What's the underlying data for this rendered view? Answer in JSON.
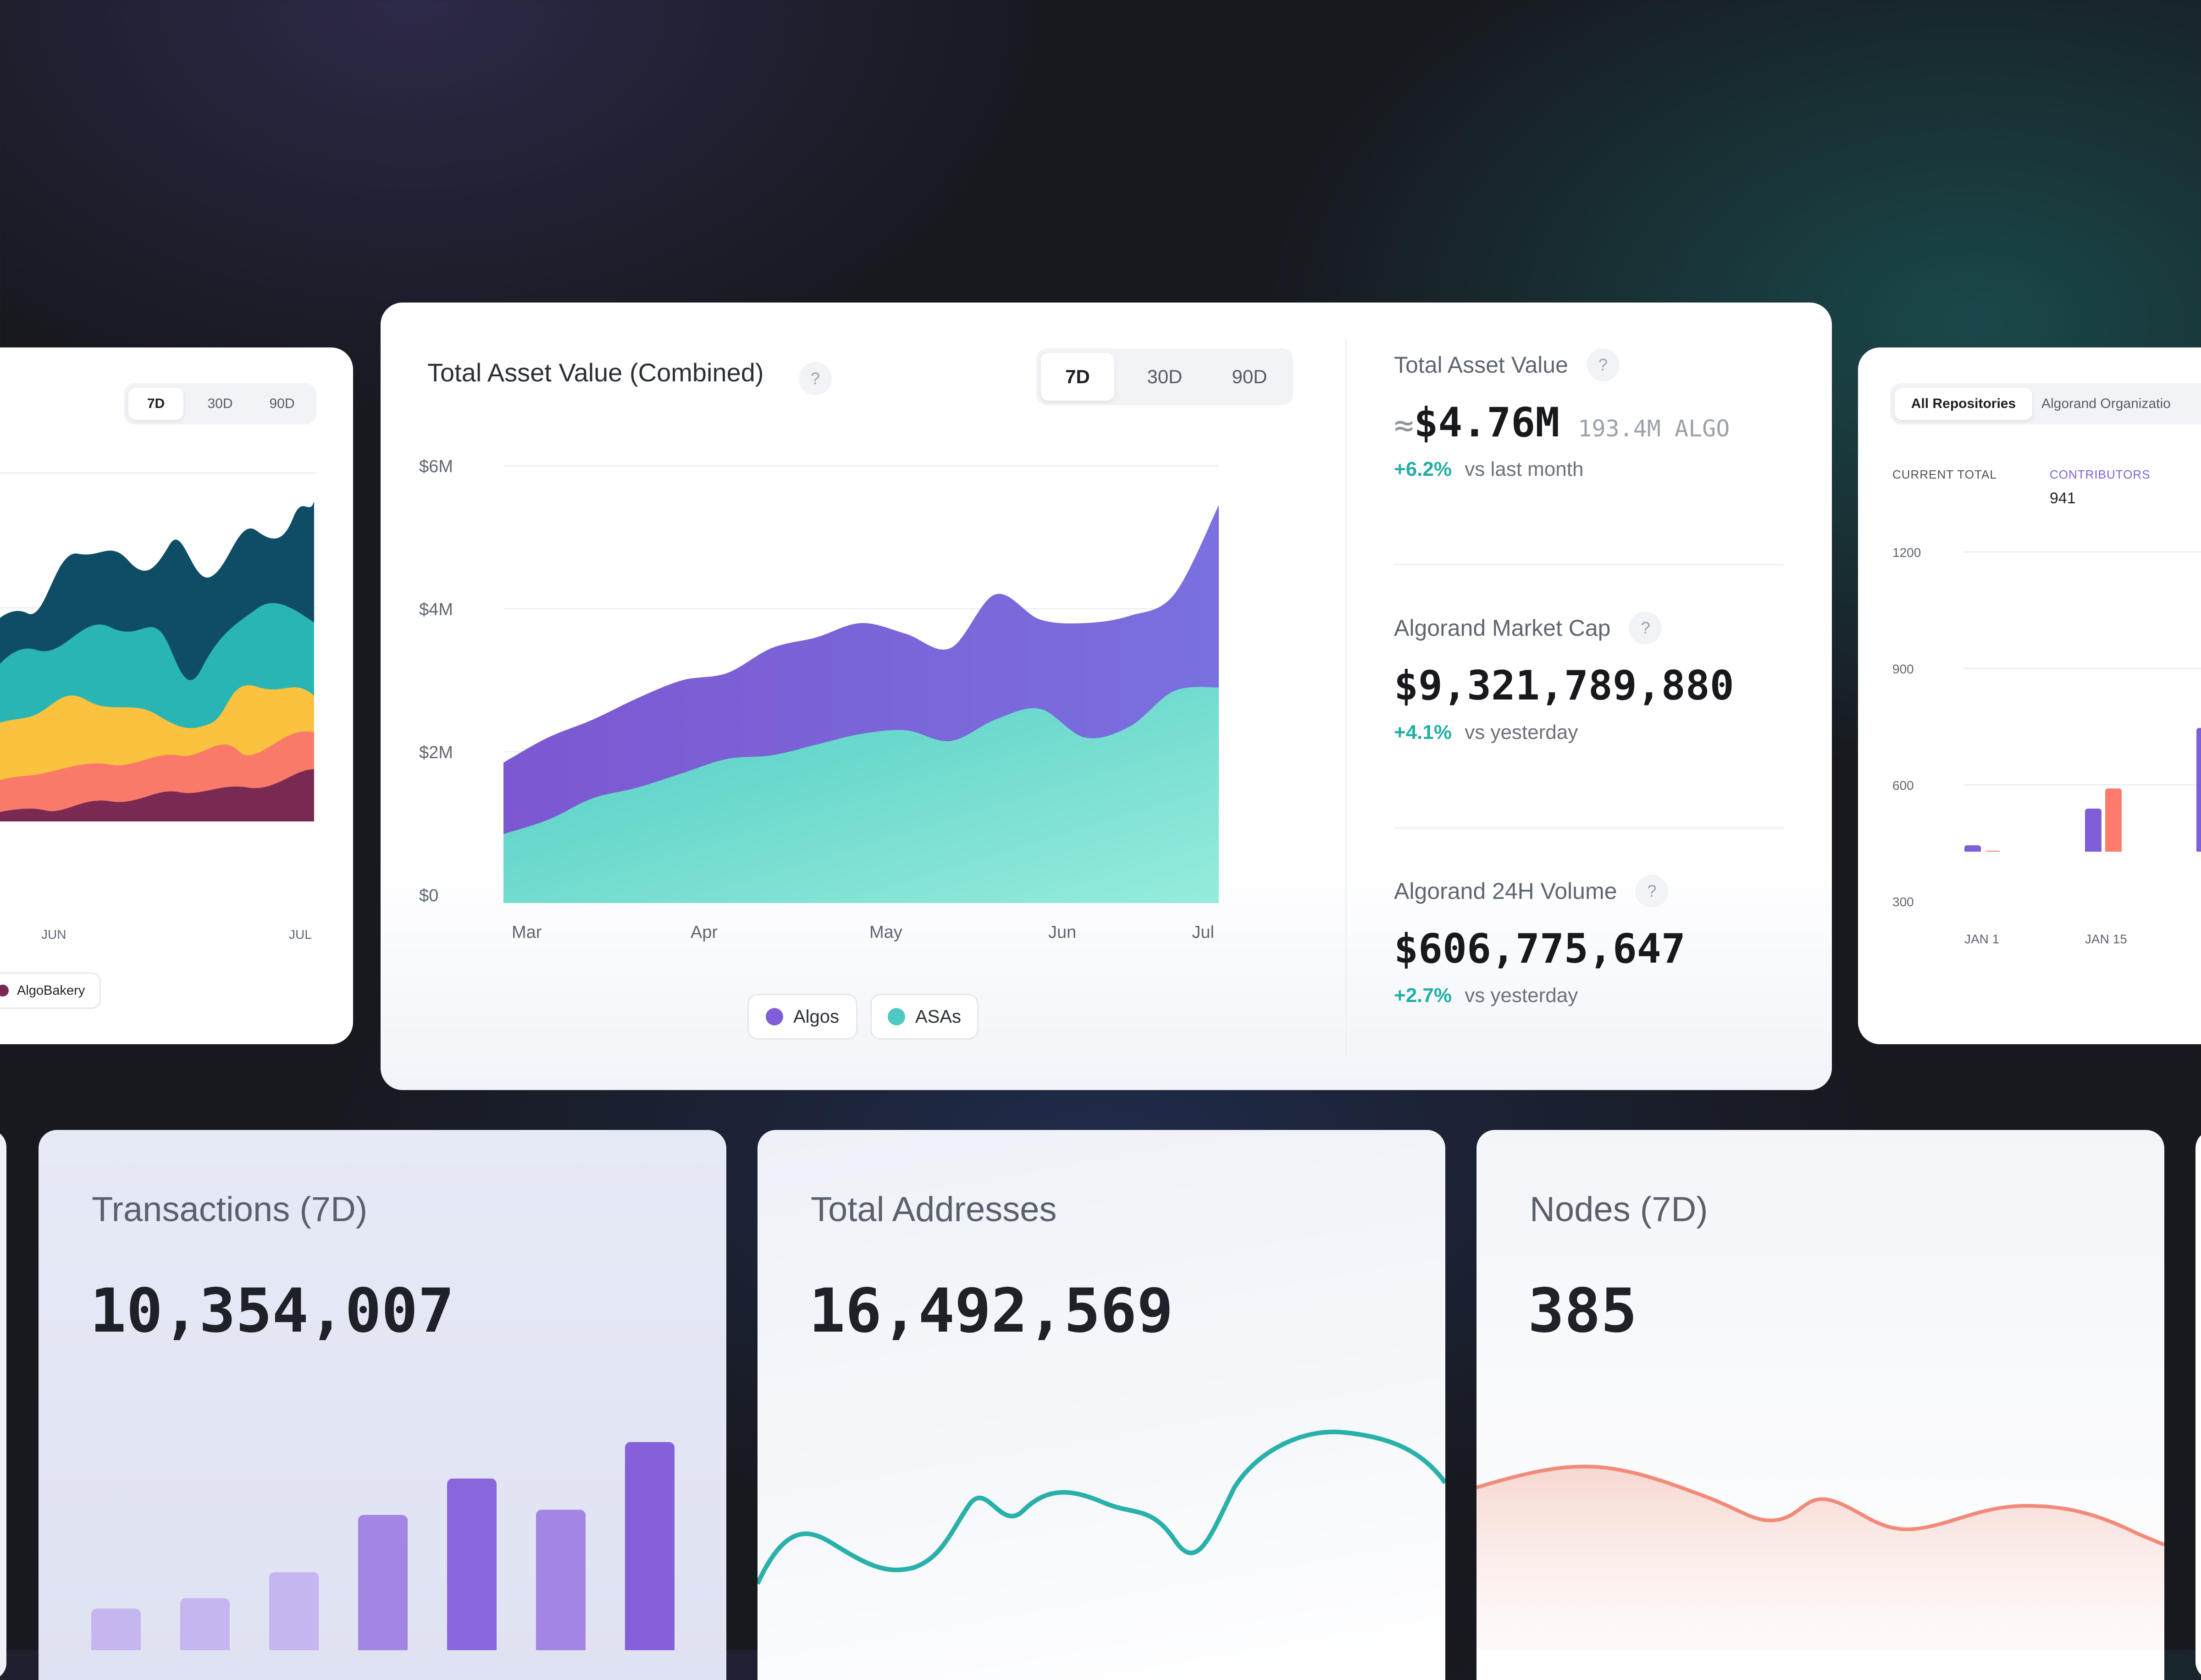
{
  "left_card": {
    "periods": [
      "7D",
      "30D",
      "90D"
    ],
    "active_period": "7D",
    "x_labels": [
      "JUN",
      "JUL"
    ],
    "legend_item": "AlgoBakery",
    "legend_color": "#7a2a52"
  },
  "main_card": {
    "title": "Total Asset Value (Combined)",
    "help": "?",
    "periods": [
      "7D",
      "30D",
      "90D"
    ],
    "active_period": "7D",
    "legend": [
      {
        "label": "Algos",
        "color": "#7e5fd9"
      },
      {
        "label": "ASAs",
        "color": "#4ec9c2"
      }
    ]
  },
  "chart_data": {
    "type": "area",
    "title": "Total Asset Value (Combined)",
    "x_tick_labels": [
      "Mar",
      "Apr",
      "May",
      "Jun",
      "Jul"
    ],
    "y_tick_labels": [
      "$0",
      "$2M",
      "$4M",
      "$6M"
    ],
    "ylim": [
      0,
      6000000
    ],
    "x": [
      0,
      0.25,
      0.5,
      0.75,
      1.0,
      1.25,
      1.5,
      1.75,
      2.0,
      2.25,
      2.5,
      2.75,
      3.0,
      3.25,
      3.5,
      3.75,
      4.0
    ],
    "series": [
      {
        "name": "ASAs",
        "color": "#4ec9c2",
        "values": [
          850000,
          1050000,
          1350000,
          1500000,
          1700000,
          1900000,
          1950000,
          2100000,
          2250000,
          2300000,
          2150000,
          2450000,
          2600000,
          2200000,
          2350000,
          2850000,
          2900000
        ]
      },
      {
        "name": "Algos",
        "color": "#7e5fd9",
        "values": [
          1850000,
          2200000,
          2450000,
          2750000,
          3000000,
          3100000,
          3450000,
          3600000,
          3800000,
          3650000,
          3450000,
          4200000,
          3850000,
          3800000,
          3900000,
          4200000,
          5450000
        ]
      }
    ]
  },
  "stats": [
    {
      "label": "Total Asset Value",
      "help": "?",
      "prefix": "≈",
      "value": "$4.76M",
      "secondary": "193.4M ALGO",
      "change": "+6.2%",
      "change_note": "vs last month"
    },
    {
      "label": "Algorand Market Cap",
      "help": "?",
      "prefix": "",
      "value": "$9,321,789,880",
      "secondary": "",
      "change": "+4.1%",
      "change_note": "vs yesterday"
    },
    {
      "label": "Algorand 24H Volume",
      "help": "?",
      "prefix": "",
      "value": "$606,775,647",
      "secondary": "",
      "change": "+2.7%",
      "change_note": "vs yesterday"
    }
  ],
  "repo_card": {
    "tabs": [
      "All Repositories",
      "Algorand Organizatio"
    ],
    "active_tab": "All Repositories",
    "metric_labels": [
      "CURRENT TOTAL",
      "CONTRIBUTORS"
    ],
    "contributors_value": "941",
    "y_labels": [
      "1200",
      "900",
      "600",
      "300"
    ],
    "x_labels": [
      "JAN 1",
      "JAN 15"
    ],
    "bar_colors": [
      "#7e5fd9",
      "#ff7b6b",
      "#2ab5ad"
    ]
  },
  "bottom_cards": [
    {
      "label": "Transactions (7D)",
      "value": "10,354,007",
      "color": "#8b6be0",
      "bars": [
        0.08,
        0.1,
        0.15,
        0.26,
        0.33,
        0.27,
        0.4
      ]
    },
    {
      "label": "Total Addresses",
      "value": "16,492,569",
      "color": "#2ab0aa"
    },
    {
      "label": "Nodes (7D)",
      "value": "385",
      "color": "#f28a7a"
    }
  ]
}
